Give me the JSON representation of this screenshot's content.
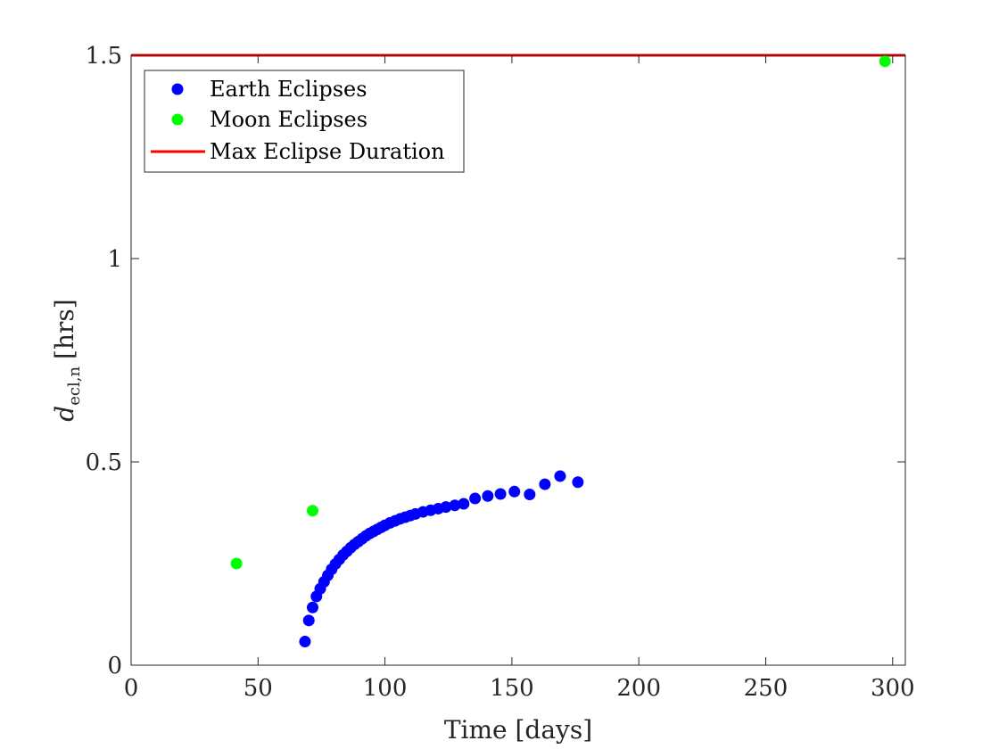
{
  "chart_data": {
    "type": "scatter",
    "title": "",
    "xlabel": "Time [days]",
    "ylabel_main": "d",
    "ylabel_sub": "ecl,n",
    "ylabel_unit": "[hrs]",
    "xlim": [
      0,
      305
    ],
    "ylim": [
      0,
      1.5
    ],
    "xticks": [
      0,
      50,
      100,
      150,
      200,
      250,
      300
    ],
    "yticks": [
      0,
      0.5,
      1,
      1.5
    ],
    "ytick_labels": [
      "0",
      "0.5",
      "1",
      "1.5"
    ],
    "grid": false,
    "legend_location": "top-left",
    "series": [
      {
        "name": "Earth Eclipses",
        "kind": "scatter",
        "color": "#0000ff",
        "x": [
          68.5,
          70,
          71.5,
          73,
          74.5,
          76,
          77.5,
          79,
          80.5,
          82,
          83.5,
          85,
          86.5,
          88,
          89.5,
          91,
          92.5,
          94,
          95.5,
          97,
          98.5,
          100,
          102,
          104,
          106,
          108,
          110,
          112,
          115,
          118,
          121,
          124,
          127.5,
          131,
          135.5,
          140.5,
          145.5,
          151,
          157,
          163,
          169,
          176
        ],
        "y": [
          0.058,
          0.11,
          0.142,
          0.169,
          0.188,
          0.205,
          0.221,
          0.236,
          0.249,
          0.26,
          0.271,
          0.28,
          0.289,
          0.297,
          0.304,
          0.311,
          0.318,
          0.324,
          0.329,
          0.334,
          0.339,
          0.344,
          0.35,
          0.355,
          0.36,
          0.364,
          0.368,
          0.372,
          0.377,
          0.381,
          0.385,
          0.389,
          0.393,
          0.397,
          0.41,
          0.416,
          0.421,
          0.427,
          0.42,
          0.445,
          0.465,
          0.45
        ]
      },
      {
        "name": "Moon Eclipses",
        "kind": "scatter",
        "color": "#00ff00",
        "x": [
          41.5,
          71.5,
          297
        ],
        "y": [
          0.25,
          0.38,
          1.485
        ]
      },
      {
        "name": "Max Eclipse Duration",
        "kind": "hline",
        "color": "#ff0000",
        "y": 1.5
      }
    ]
  }
}
